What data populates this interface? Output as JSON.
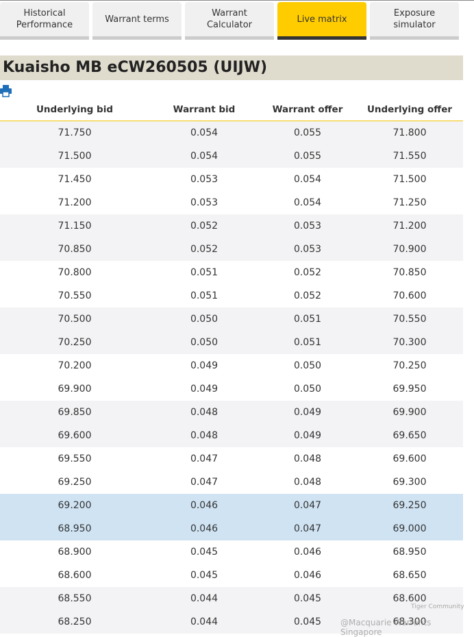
{
  "tabs": [
    {
      "label": "Historical Performance",
      "active": false
    },
    {
      "label": "Warrant terms",
      "active": false
    },
    {
      "label": "Warrant Calculator",
      "active": false
    },
    {
      "label": "Live matrix",
      "active": true
    },
    {
      "label": "Exposure simulator",
      "active": false
    }
  ],
  "title": "Kuaisho MB eCW260505 (UIJW)",
  "table": {
    "columns": [
      "Underlying bid",
      "Warrant bid",
      "Warrant offer",
      "Underlying offer"
    ],
    "highlighted_rows": [
      16,
      17
    ],
    "rows": [
      [
        "71.750",
        "0.054",
        "0.055",
        "71.800"
      ],
      [
        "71.500",
        "0.054",
        "0.055",
        "71.550"
      ],
      [
        "71.450",
        "0.053",
        "0.054",
        "71.500"
      ],
      [
        "71.200",
        "0.053",
        "0.054",
        "71.250"
      ],
      [
        "71.150",
        "0.052",
        "0.053",
        "71.200"
      ],
      [
        "70.850",
        "0.052",
        "0.053",
        "70.900"
      ],
      [
        "70.800",
        "0.051",
        "0.052",
        "70.850"
      ],
      [
        "70.550",
        "0.051",
        "0.052",
        "70.600"
      ],
      [
        "70.500",
        "0.050",
        "0.051",
        "70.550"
      ],
      [
        "70.250",
        "0.050",
        "0.051",
        "70.300"
      ],
      [
        "70.200",
        "0.049",
        "0.050",
        "70.250"
      ],
      [
        "69.900",
        "0.049",
        "0.050",
        "69.950"
      ],
      [
        "69.850",
        "0.048",
        "0.049",
        "69.900"
      ],
      [
        "69.600",
        "0.048",
        "0.049",
        "69.650"
      ],
      [
        "69.550",
        "0.047",
        "0.048",
        "69.600"
      ],
      [
        "69.250",
        "0.047",
        "0.048",
        "69.300"
      ],
      [
        "69.200",
        "0.046",
        "0.047",
        "69.250"
      ],
      [
        "68.950",
        "0.046",
        "0.047",
        "69.000"
      ],
      [
        "68.900",
        "0.045",
        "0.046",
        "68.950"
      ],
      [
        "68.600",
        "0.045",
        "0.046",
        "68.650"
      ],
      [
        "68.550",
        "0.044",
        "0.045",
        "68.600"
      ],
      [
        "68.250",
        "0.044",
        "0.045",
        "68.300"
      ]
    ]
  },
  "watermark": {
    "community": "Tiger Community",
    "credit": "@Macquarie Warrants Singapore"
  }
}
